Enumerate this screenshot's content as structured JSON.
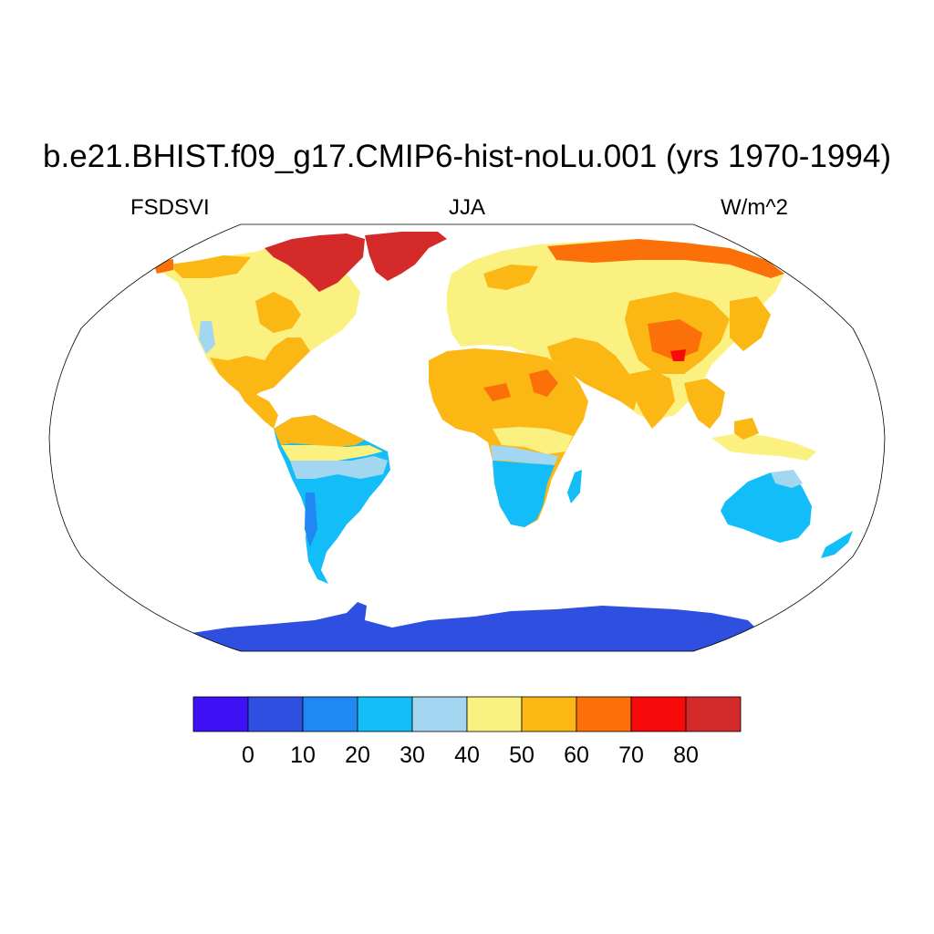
{
  "title": "b.e21.BHIST.f09_g17.CMIP6-hist-noLu.001 (yrs 1970-1994)",
  "left_label": "FSDSVI",
  "center_label": "JJA",
  "right_label": "W/m^2",
  "projection": "Robinson",
  "colorbar": {
    "levels": [
      "0",
      "10",
      "20",
      "30",
      "40",
      "50",
      "60",
      "70",
      "80"
    ],
    "colors": [
      "#3f12f5",
      "#2e4fe0",
      "#2088f2",
      "#13bdf7",
      "#a3d6f0",
      "#fbf181",
      "#fbb714",
      "#fb7008",
      "#f70a0a",
      "#d42a2a"
    ]
  },
  "region_colors": {
    "antarctica": "#2e4fe0",
    "greenland_arctic": "#d42a2a",
    "northern_continents": "#fbf181",
    "subtropics": "#fbb714",
    "hotspots": "#fb7008",
    "southern_continents": "#13bdf7",
    "transition_band": "#a3d6f0"
  }
}
